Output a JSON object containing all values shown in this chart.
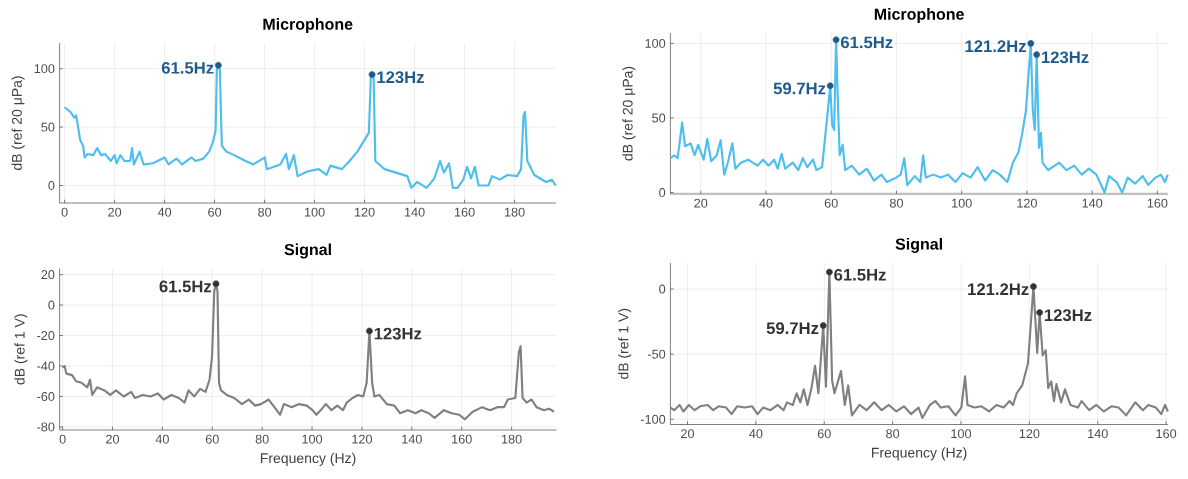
{
  "chart_data": [
    {
      "type": "line",
      "title": "Microphone",
      "ylabel": "dB (ref 20 μPa)",
      "xlim": [
        -2,
        196.5
      ],
      "ylim": [
        -15,
        122
      ],
      "xticks": [
        0,
        20,
        40,
        60,
        80,
        100,
        120,
        140,
        160,
        180
      ],
      "yticks": [
        0,
        50,
        100
      ],
      "grid": true,
      "series": [
        {
          "color": "#4dbeee",
          "x": [
            0,
            2.3,
            3.9,
            4.6,
            5.4,
            6.2,
            7.4,
            8,
            9.2,
            11.5,
            13,
            14.6,
            16.2,
            18.5,
            20,
            20.8,
            22.3,
            23.9,
            26.2,
            27,
            27.7,
            30,
            31.6,
            35.4,
            40,
            41.6,
            44.7,
            47,
            50.8,
            52.4,
            55.5,
            57.8,
            59.3,
            60.4,
            60.9,
            61.5,
            62.1,
            62.9,
            64.7,
            67.8,
            72.4,
            75.5,
            80.1,
            80.9,
            86.3,
            88.6,
            89.7,
            91.7,
            93.2,
            97.1,
            101.7,
            104.8,
            106.3,
            110.9,
            114,
            117.1,
            119.4,
            121.7,
            122.5,
            123,
            123.6,
            124.3,
            128,
            132.5,
            137.1,
            138.7,
            141,
            144.8,
            147.9,
            150.2,
            151.7,
            153.8,
            155.3,
            157.2,
            159.5,
            161,
            162.6,
            164.1,
            165.6,
            169.5,
            171,
            174.1,
            177.2,
            181,
            182.6,
            183.6,
            184.2,
            185.1,
            187.9,
            192.6,
            194.9,
            196.5
          ],
          "values": [
            67,
            63,
            58,
            60,
            50,
            39,
            34,
            24,
            27,
            26,
            32,
            26,
            27,
            21,
            26,
            19,
            26,
            21,
            21,
            32,
            18,
            29,
            18,
            19,
            24,
            18,
            23,
            18,
            24,
            21,
            23,
            29,
            37,
            47,
            99,
            103,
            99,
            34,
            29,
            26,
            21,
            18,
            24,
            14,
            18,
            27,
            14,
            26,
            8,
            12,
            14,
            9,
            17,
            14,
            21,
            29,
            37,
            45,
            93,
            95,
            93,
            21,
            14,
            11,
            8,
            -2,
            3,
            -2,
            6,
            21,
            11,
            19,
            -2,
            -2,
            5,
            16,
            6,
            16,
            0,
            0,
            8,
            5,
            9,
            8,
            14,
            60,
            63,
            21,
            9,
            3,
            5,
            0
          ]
        },
        {
          "type": "scatter",
          "color": "#1f5a8c",
          "x": [
            61.5,
            123
          ],
          "values": [
            103,
            95
          ]
        }
      ],
      "annotations": [
        {
          "text": "61.5Hz",
          "x": 61.5,
          "y": 103
        },
        {
          "text": "123Hz",
          "x": 123,
          "y": 95
        }
      ]
    },
    {
      "type": "line",
      "title": "Microphone",
      "ylabel": "dB (ref 20 μPa)",
      "xlim": [
        10.7,
        163.2
      ],
      "ylim": [
        -1,
        107
      ],
      "xticks": [
        20,
        40,
        60,
        80,
        100,
        120,
        140,
        160
      ],
      "yticks": [
        0,
        50,
        100
      ],
      "grid": true,
      "series": [
        {
          "color": "#4dbeee",
          "x": [
            10.7,
            11.8,
            12.9,
            13.5,
            14.3,
            15.2,
            16.9,
            18.1,
            19.2,
            20.9,
            22,
            23.2,
            24.9,
            26.1,
            27.2,
            28.3,
            29.7,
            30.6,
            32.3,
            34.5,
            37.4,
            39.1,
            40.8,
            42.5,
            43.6,
            44.8,
            45.9,
            48.2,
            49.9,
            51.3,
            52.7,
            54.4,
            55.5,
            57.2,
            58.6,
            59.7,
            60.3,
            60.9,
            61.5,
            62.1,
            62.6,
            63.5,
            64.3,
            66.3,
            68.6,
            70.9,
            73.1,
            75.4,
            77.1,
            79.9,
            81.3,
            82.4,
            83.3,
            85.6,
            87.3,
            88.2,
            89,
            91.3,
            93.6,
            95.8,
            98.1,
            100.3,
            102.7,
            104.9,
            107.2,
            109.5,
            111.7,
            114,
            115.7,
            117.4,
            118.6,
            119.7,
            121.2,
            121.8,
            122.4,
            123,
            123.7,
            124.3,
            124.8,
            126.5,
            129.9,
            132.2,
            134.5,
            136.8,
            139,
            141.3,
            143.8,
            145.2,
            147.5,
            149.2,
            150.9,
            153.2,
            155.5,
            157.2,
            159.4,
            161.1,
            162.3,
            163.2
          ],
          "values": [
            23,
            25,
            23,
            33,
            47,
            31,
            33,
            25,
            32,
            22,
            36,
            21,
            25,
            35,
            12,
            20,
            33,
            16,
            20,
            22,
            18,
            22,
            18,
            22,
            16,
            26,
            16,
            20,
            15,
            23,
            17,
            22,
            15,
            17,
            47,
            71.6,
            45,
            42,
            102.5,
            57,
            25,
            32,
            15,
            18,
            12,
            16,
            8,
            12,
            7,
            10,
            12,
            23,
            5,
            11,
            7,
            25,
            10,
            12,
            10,
            12,
            7,
            13,
            10,
            17,
            8,
            15,
            12,
            7,
            20,
            27,
            40,
            55,
            100,
            55,
            42,
            92.5,
            30,
            40,
            20,
            15,
            20,
            15,
            18,
            12,
            16,
            12,
            0,
            11,
            7,
            0,
            10,
            6,
            11,
            5,
            10,
            12,
            7,
            12
          ]
        },
        {
          "type": "scatter",
          "color": "#1f5a8c",
          "x": [
            59.7,
            61.5,
            121.2,
            123
          ],
          "values": [
            71.6,
            102.5,
            100,
            92.5
          ]
        }
      ],
      "annotations": [
        {
          "text": "59.7Hz",
          "x": 59.7,
          "y": 71.6
        },
        {
          "text": "61.5Hz",
          "x": 61.5,
          "y": 102.5
        },
        {
          "text": "121.2Hz",
          "x": 121.2,
          "y": 100
        },
        {
          "text": "123Hz",
          "x": 123,
          "y": 92.5
        }
      ]
    },
    {
      "type": "line",
      "title": "Signal",
      "xlabel": "Frequency (Hz)",
      "ylabel": "dB (ref 1 V)",
      "xlim": [
        -1.2,
        198
      ],
      "ylim": [
        -82,
        24
      ],
      "xticks": [
        0,
        20,
        40,
        60,
        80,
        100,
        120,
        140,
        160,
        180
      ],
      "yticks": [
        -80,
        -60,
        -40,
        -20,
        0,
        20
      ],
      "grid": true,
      "series": [
        {
          "color": "#808080",
          "x": [
            0,
            0.8,
            1.5,
            3.8,
            5.4,
            7.6,
            9.9,
            11,
            11.9,
            13.8,
            16.8,
            19.1,
            21.4,
            24.5,
            27.5,
            29,
            32.1,
            35.2,
            38.2,
            40.5,
            43.6,
            46.6,
            48.9,
            50.5,
            52.8,
            55.1,
            57.3,
            58.9,
            59.9,
            60.8,
            61.5,
            62.1,
            62.7,
            63.5,
            65.8,
            68.8,
            71.9,
            74.6,
            77.2,
            79.5,
            82.6,
            84.9,
            87.2,
            88.7,
            91.8,
            94.8,
            97.9,
            100.2,
            101.7,
            104,
            105.5,
            107.8,
            110.1,
            112.4,
            113.9,
            116.2,
            118.5,
            120.5,
            121.9,
            123,
            124.1,
            125,
            127,
            130,
            133,
            135.3,
            138.4,
            141.5,
            143.8,
            146.8,
            149.1,
            152.9,
            156,
            159,
            161.3,
            164.4,
            168.2,
            171.3,
            174.3,
            177,
            178.5,
            181.5,
            182.9,
            183.6,
            184.4,
            186,
            188,
            190,
            193,
            195,
            197
          ],
          "values": [
            -41,
            -40,
            -45,
            -46,
            -50,
            -51,
            -54,
            -49,
            -59,
            -54,
            -56,
            -59,
            -56,
            -60,
            -57,
            -61,
            -59,
            -60,
            -58,
            -62,
            -59,
            -61,
            -64,
            -56,
            -60,
            -55,
            -57,
            -49,
            -34,
            9,
            14,
            9,
            -51,
            -56,
            -59,
            -61,
            -65,
            -62,
            -66,
            -65,
            -62,
            -67,
            -72,
            -65,
            -67,
            -65,
            -66,
            -69,
            -72,
            -68,
            -65,
            -69,
            -66,
            -69,
            -64,
            -61,
            -59,
            -60,
            -51,
            -17,
            -51,
            -60,
            -59,
            -65,
            -66,
            -71,
            -69,
            -71,
            -69,
            -71,
            -74,
            -69,
            -71,
            -72,
            -75,
            -70,
            -67,
            -69,
            -67,
            -67,
            -62,
            -61,
            -31,
            -27,
            -61,
            -64,
            -62,
            -67,
            -69,
            -68,
            -70
          ]
        },
        {
          "type": "scatter",
          "color": "#333333",
          "x": [
            61.5,
            123
          ],
          "values": [
            14,
            -17
          ]
        }
      ],
      "annotations": [
        {
          "text": "61.5Hz",
          "x": 61.5,
          "y": 14
        },
        {
          "text": "123Hz",
          "x": 123,
          "y": -17
        }
      ]
    },
    {
      "type": "line",
      "title": "Signal",
      "xlabel": "Frequency (Hz)",
      "ylabel": "dB (ref 1 V)",
      "xlim": [
        15,
        160.5
      ],
      "ylim": [
        -104,
        20
      ],
      "xticks": [
        20,
        40,
        60,
        80,
        100,
        120,
        140,
        160
      ],
      "yticks": [
        -100,
        -50,
        0
      ],
      "grid": true,
      "series": [
        {
          "color": "#808080",
          "x": [
            15,
            16.1,
            17.7,
            18.8,
            20.4,
            22.1,
            23.7,
            25.9,
            27.5,
            29.1,
            31.3,
            32.9,
            34.5,
            36.7,
            38.9,
            40.5,
            42.1,
            44.3,
            46.4,
            48.1,
            49.1,
            50.8,
            51.9,
            53,
            54,
            55.1,
            56.2,
            57.3,
            58.3,
            59.7,
            60.5,
            61.5,
            62.3,
            63,
            64.9,
            66,
            67,
            68.1,
            70.3,
            72.4,
            74.6,
            76.8,
            78.9,
            81.1,
            83.3,
            85.4,
            87.6,
            88.7,
            90.9,
            92.5,
            94.1,
            96.3,
            98.4,
            100.1,
            101.2,
            101.9,
            103.9,
            106,
            108.2,
            110.4,
            112.5,
            114.2,
            115.2,
            116.3,
            117.9,
            119.6,
            121.2,
            122.3,
            123,
            123.9,
            124.8,
            125.5,
            126.4,
            127.2,
            127.9,
            129.3,
            130.4,
            132,
            134.2,
            135.3,
            137.5,
            139.6,
            141.8,
            144,
            146.1,
            148.3,
            151,
            153.2,
            154.8,
            157,
            158.6,
            159.7,
            160.5
          ],
          "values": [
            -91,
            -93,
            -89,
            -94,
            -89,
            -93,
            -90,
            -89,
            -93,
            -90,
            -91,
            -96,
            -90,
            -91,
            -90,
            -96,
            -91,
            -93,
            -89,
            -93,
            -87,
            -89,
            -80,
            -87,
            -77,
            -89,
            -77,
            -59,
            -80,
            -28,
            -75,
            13,
            -70,
            -80,
            -63,
            -89,
            -74,
            -97,
            -89,
            -93,
            -87,
            -93,
            -89,
            -94,
            -90,
            -96,
            -91,
            -99,
            -89,
            -86,
            -91,
            -90,
            -97,
            -91,
            -67,
            -89,
            -91,
            -90,
            -94,
            -89,
            -91,
            -86,
            -89,
            -80,
            -74,
            -57,
            2,
            -49,
            -18,
            -51,
            -47,
            -76,
            -71,
            -86,
            -73,
            -87,
            -77,
            -89,
            -91,
            -86,
            -93,
            -89,
            -94,
            -90,
            -91,
            -97,
            -87,
            -93,
            -89,
            -91,
            -96,
            -89,
            -94
          ]
        },
        {
          "type": "scatter",
          "color": "#333333",
          "x": [
            59.7,
            61.5,
            121.2,
            123
          ],
          "values": [
            -28,
            13,
            2,
            -18
          ]
        }
      ],
      "annotations": [
        {
          "text": "59.7Hz",
          "x": 59.7,
          "y": -28
        },
        {
          "text": "61.5Hz",
          "x": 61.5,
          "y": 13
        },
        {
          "text": "121.2Hz",
          "x": 121.2,
          "y": 2
        },
        {
          "text": "123Hz",
          "x": 123,
          "y": -18
        }
      ]
    }
  ]
}
